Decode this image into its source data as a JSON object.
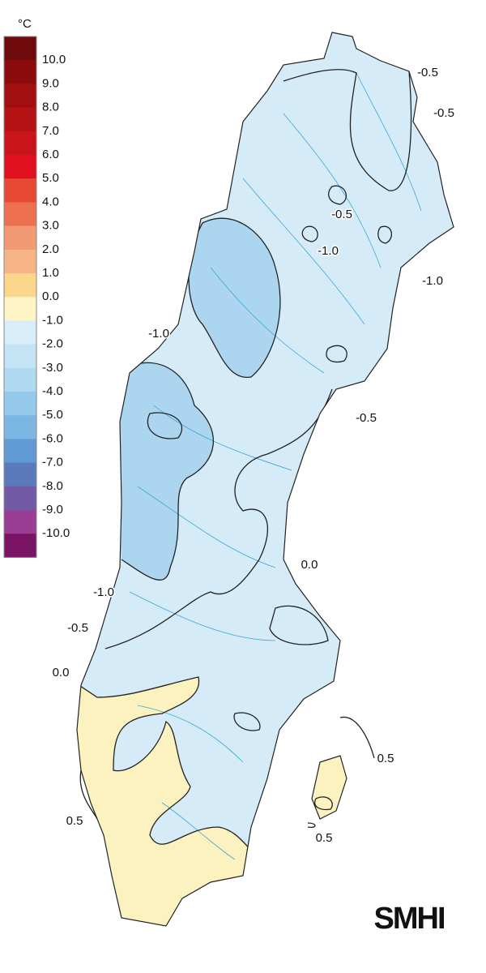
{
  "legend": {
    "unit": "°C",
    "labels": [
      "10.0",
      "9.0",
      "8.0",
      "7.0",
      "6.0",
      "5.0",
      "4.0",
      "3.0",
      "2.0",
      "1.0",
      "0.0",
      "-1.0",
      "-2.0",
      "-3.0",
      "-4.0",
      "-5.0",
      "-6.0",
      "-7.0",
      "-8.0",
      "-9.0",
      "-10.0"
    ],
    "colors": [
      "#6e0a0c",
      "#8c0c0e",
      "#a20f10",
      "#b51214",
      "#c9141a",
      "#e1101e",
      "#e64a34",
      "#ec7050",
      "#f29a74",
      "#f6b486",
      "#fbd78c",
      "#fff4c6",
      "#d8edf9",
      "#c4e3f5",
      "#aed9f1",
      "#96caed",
      "#7cb7e4",
      "#6199d4",
      "#5b79bb",
      "#725aa6",
      "#9a3d94",
      "#7c1466"
    ]
  },
  "map": {
    "region_fill": "#d6ebf8",
    "cold_fill": "#acd6f0",
    "warm_fill": "#fbf2bf",
    "contour_color": "#222222",
    "river_color": "#3aa8d6"
  },
  "contour_labels": [
    "-0.5",
    "-0.5",
    "-0.5",
    "-1.0",
    "-1.0",
    "-1.0",
    "-0.5",
    "0.0",
    "-1.0",
    "-0.5",
    "0.0",
    "0.5",
    "0.5",
    "0.5"
  ],
  "logo": "SMHI"
}
